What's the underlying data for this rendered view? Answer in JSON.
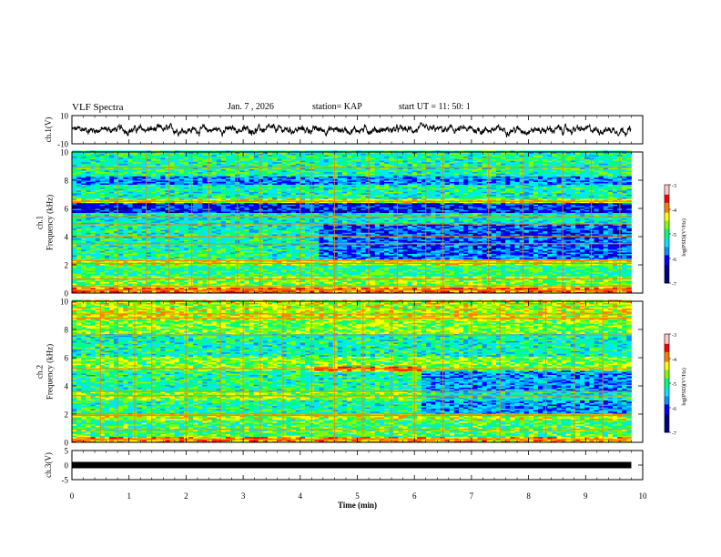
{
  "header": {
    "title": "VLF Spectra",
    "date": "Jan. 7 , 2026",
    "station": "station= KAP",
    "start": "start  UT =   11: 50: 1"
  },
  "chart_data": [
    {
      "type": "line",
      "name": "ch1-waveform",
      "ylabel": "ch.1(V)",
      "ylim": [
        -10,
        10
      ],
      "yticks": [
        "10",
        "-10"
      ],
      "xlim": [
        0,
        10
      ],
      "series": [
        {
          "name": "ch.1 voltage",
          "mean": 0,
          "approx_amplitude": 5,
          "duration_min": 9.8
        }
      ]
    },
    {
      "type": "heatmap",
      "name": "ch1-spectrogram",
      "ylabel": "ch.1\nFrequency  (kHz)",
      "ylim": [
        0,
        10
      ],
      "yticks": [
        "0",
        "2",
        "4",
        "6",
        "8",
        "10"
      ],
      "xlim": [
        0,
        10
      ],
      "colorbar": {
        "label": "log(PSD)(V²/Hz)",
        "range": [
          -7,
          -3
        ],
        "ticks": [
          "-3",
          "-4",
          "-5",
          "-6",
          "-7"
        ]
      },
      "bands": [
        {
          "f0": 0.0,
          "f1": 0.4,
          "level": -3.6
        },
        {
          "f0": 0.4,
          "f1": 1.2,
          "level": -4.6
        },
        {
          "f0": 1.2,
          "f1": 2.0,
          "level": -5.0
        },
        {
          "f0": 2.0,
          "f1": 2.4,
          "level": -4.3
        },
        {
          "f0": 2.4,
          "f1": 3.6,
          "level": -5.6
        },
        {
          "f0": 3.6,
          "f1": 4.8,
          "level": -5.7
        },
        {
          "f0": 4.8,
          "f1": 5.6,
          "level": -5.3
        },
        {
          "f0": 5.6,
          "f1": 6.3,
          "level": -6.3
        },
        {
          "f0": 6.3,
          "f1": 6.6,
          "level": -4.2
        },
        {
          "f0": 6.6,
          "f1": 7.6,
          "level": -5.2
        },
        {
          "f0": 7.6,
          "f1": 8.2,
          "level": -5.9
        },
        {
          "f0": 8.2,
          "f1": 10.0,
          "level": -5.1
        }
      ],
      "events": [
        {
          "t0": 0.0,
          "t1": 4.3,
          "f0": 2.4,
          "f1": 4.8,
          "delta": 0.5
        },
        {
          "t0": 4.3,
          "t1": 9.8,
          "f0": 2.4,
          "f1": 4.8,
          "delta": -0.4
        }
      ],
      "lines_khz": [
        0.2,
        0.5,
        1.0,
        2.1,
        2.3,
        3.5,
        4.0,
        4.9,
        5.4,
        6.5,
        8.9
      ],
      "spikes_min": [
        0.8,
        1.3,
        1.7,
        2.1,
        2.4,
        2.9,
        3.3,
        4.0,
        4.2,
        4.6,
        5.2,
        5.7,
        6.2,
        6.5,
        7.3,
        7.9,
        8.6,
        9.1,
        9.6
      ]
    },
    {
      "type": "heatmap",
      "name": "ch2-spectrogram",
      "ylabel": "ch.2\nFrequency  (kHz)",
      "ylim": [
        0,
        10
      ],
      "yticks": [
        "0",
        "2",
        "4",
        "6",
        "8",
        "10"
      ],
      "xlim": [
        0,
        10
      ],
      "colorbar": {
        "label": "log(PSD)(V²/Hz)",
        "range": [
          -7,
          -3
        ],
        "ticks": [
          "-3",
          "-4",
          "-5",
          "-6",
          "-7"
        ]
      },
      "bands": [
        {
          "f0": 0.0,
          "f1": 0.4,
          "level": -3.8
        },
        {
          "f0": 0.4,
          "f1": 1.0,
          "level": -4.8
        },
        {
          "f0": 1.0,
          "f1": 1.6,
          "level": -4.9
        },
        {
          "f0": 1.6,
          "f1": 2.0,
          "level": -4.4
        },
        {
          "f0": 2.0,
          "f1": 3.0,
          "level": -5.1
        },
        {
          "f0": 3.0,
          "f1": 3.6,
          "level": -4.6
        },
        {
          "f0": 3.6,
          "f1": 5.0,
          "level": -5.1
        },
        {
          "f0": 5.0,
          "f1": 6.0,
          "level": -4.6
        },
        {
          "f0": 6.0,
          "f1": 7.6,
          "level": -5.2
        },
        {
          "f0": 7.6,
          "f1": 8.6,
          "level": -4.6
        },
        {
          "f0": 8.6,
          "f1": 10.0,
          "level": -4.3
        }
      ],
      "events": [
        {
          "t0": 4.2,
          "t1": 6.1,
          "f0": 4.9,
          "f1": 5.3,
          "delta": 1.1
        },
        {
          "t0": 6.1,
          "t1": 9.8,
          "f0": 2.0,
          "f1": 5.0,
          "delta": -0.7
        }
      ],
      "lines_khz": [
        0.2,
        0.9,
        1.9,
        2.0,
        3.3,
        3.6,
        5.2,
        7.6,
        8.8,
        9.1
      ],
      "spikes_min": [
        0.5,
        0.8,
        1.1,
        1.4,
        2.0,
        2.6,
        3.0,
        3.3,
        3.7,
        4.2,
        4.6,
        5.1,
        5.6,
        6.0,
        6.5,
        7.0,
        7.5,
        8.3,
        8.8,
        9.3
      ]
    },
    {
      "type": "line",
      "name": "ch3-signal",
      "ylabel": "ch.3(V)",
      "ylim": [
        -5,
        5
      ],
      "yticks": [
        "5",
        "0",
        "-5"
      ],
      "xlim": [
        0,
        10
      ],
      "xticks": [
        "0",
        "1",
        "2",
        "3",
        "4",
        "5",
        "6",
        "7",
        "8",
        "9",
        "10"
      ],
      "xlabel": "Time  (min)",
      "series": [
        {
          "name": "ch.3 voltage",
          "constant": 0,
          "duration_min": 9.8
        }
      ]
    }
  ],
  "colors": {
    "colormap": [
      "#00008c",
      "#0000ff",
      "#0096ff",
      "#00e6ff",
      "#00ff80",
      "#80ff00",
      "#ffff00",
      "#ff8000",
      "#ff0000",
      "#ffc8c8"
    ],
    "trace": "#000000"
  }
}
